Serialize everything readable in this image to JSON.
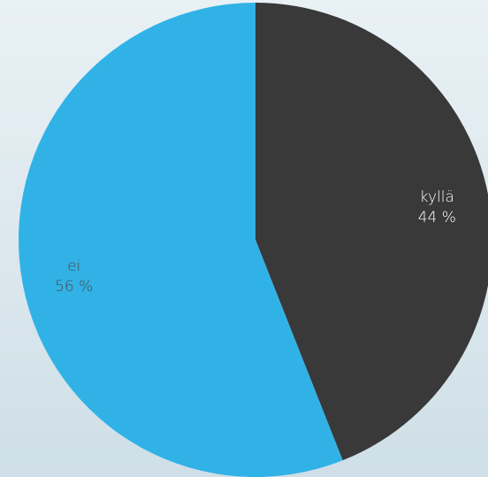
{
  "chart_data": {
    "type": "pie",
    "title": "",
    "slices": [
      {
        "label": "kyllä",
        "value": 44,
        "value_label": "44 %",
        "color": "#393939",
        "label_color": "#ffffff"
      },
      {
        "label": "ei",
        "value": 56,
        "value_label": "56 %",
        "color": "#31b2e7",
        "label_color": "#4a4a4a"
      }
    ],
    "start_angle": "12 o'clock",
    "direction": "clockwise",
    "legend": "none",
    "data_labels": "inside"
  }
}
